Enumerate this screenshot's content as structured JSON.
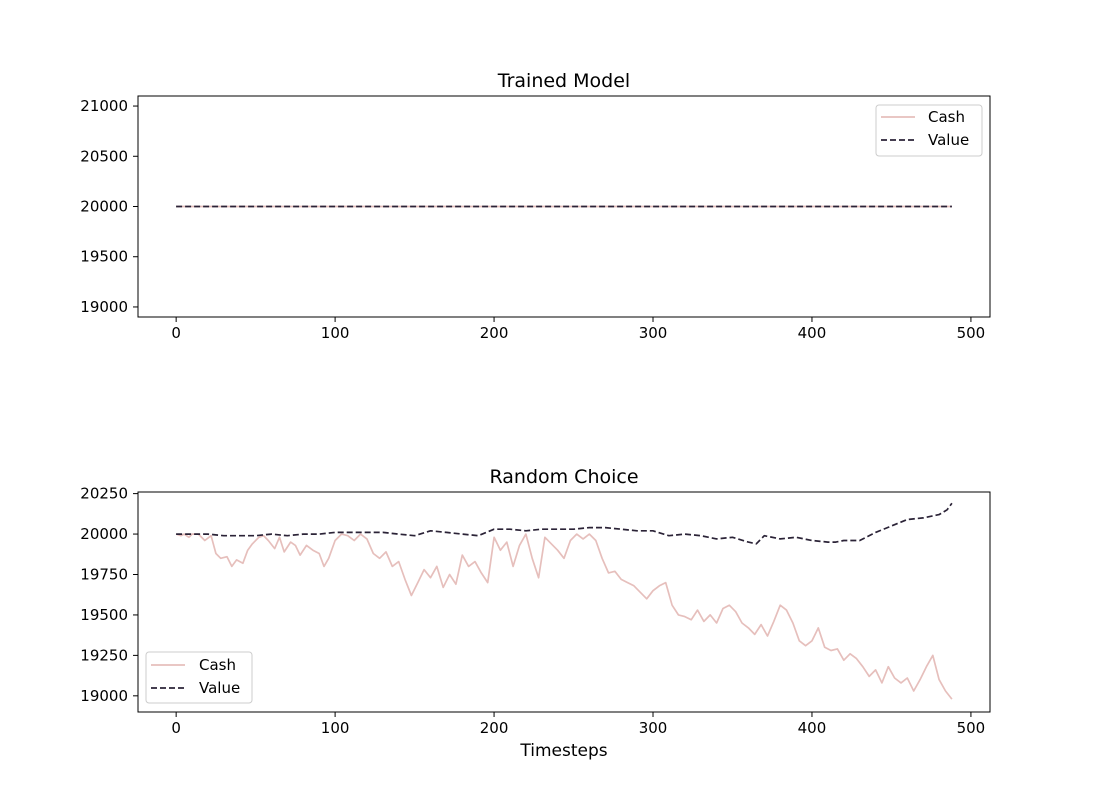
{
  "figure": {
    "background": "#ffffff",
    "series_colors": {
      "cash": "#e6bfbc",
      "value": "#2b2337"
    }
  },
  "chart_data": [
    {
      "type": "line",
      "title": "Trained Model",
      "xlabel": "",
      "ylabel": "",
      "xlim": [
        -24,
        512
      ],
      "ylim": [
        18900,
        21100
      ],
      "xticks": [
        0,
        100,
        200,
        300,
        400,
        500
      ],
      "yticks": [
        19000,
        19500,
        20000,
        20500,
        21000
      ],
      "grid": false,
      "legend_position": "top-right",
      "series": [
        {
          "name": "Cash",
          "style": "solid",
          "color": "#e6bfbc",
          "x": [
            0,
            488
          ],
          "y": [
            20000,
            20000
          ]
        },
        {
          "name": "Value",
          "style": "dashed",
          "color": "#2b2337",
          "x": [
            0,
            488
          ],
          "y": [
            20000,
            20000
          ]
        }
      ]
    },
    {
      "type": "line",
      "title": "Random Choice",
      "xlabel": "Timesteps",
      "ylabel": "",
      "xlim": [
        -24,
        512
      ],
      "ylim": [
        18900,
        20260
      ],
      "xticks": [
        0,
        100,
        200,
        300,
        400,
        500
      ],
      "yticks": [
        19000,
        19250,
        19500,
        19750,
        20000,
        20250
      ],
      "grid": false,
      "legend_position": "bottom-left",
      "series": [
        {
          "name": "Cash",
          "style": "solid",
          "color": "#e6bfbc",
          "x": [
            0,
            3,
            5,
            8,
            10,
            14,
            18,
            22,
            25,
            28,
            32,
            35,
            38,
            42,
            45,
            48,
            52,
            55,
            58,
            62,
            65,
            68,
            72,
            75,
            78,
            82,
            86,
            90,
            93,
            96,
            100,
            104,
            108,
            112,
            116,
            120,
            124,
            128,
            132,
            136,
            140,
            144,
            148,
            152,
            156,
            160,
            164,
            168,
            172,
            176,
            180,
            184,
            188,
            192,
            196,
            200,
            204,
            208,
            212,
            216,
            220,
            224,
            228,
            232,
            236,
            240,
            244,
            248,
            252,
            256,
            260,
            264,
            268,
            272,
            276,
            280,
            284,
            288,
            292,
            296,
            300,
            304,
            308,
            312,
            316,
            320,
            324,
            328,
            332,
            336,
            340,
            344,
            348,
            352,
            356,
            360,
            364,
            368,
            372,
            376,
            380,
            384,
            388,
            392,
            396,
            400,
            404,
            408,
            412,
            416,
            420,
            424,
            428,
            432,
            436,
            440,
            444,
            448,
            452,
            456,
            460,
            464,
            468,
            472,
            476,
            480,
            484,
            488
          ],
          "y": [
            20000,
            19990,
            20000,
            19980,
            20000,
            20000,
            19960,
            19990,
            19880,
            19850,
            19860,
            19800,
            19840,
            19820,
            19900,
            19940,
            19980,
            19990,
            19960,
            19910,
            19980,
            19890,
            19950,
            19930,
            19870,
            19930,
            19900,
            19880,
            19800,
            19850,
            19960,
            20000,
            19990,
            19960,
            20000,
            19970,
            19880,
            19850,
            19890,
            19800,
            19830,
            19720,
            19620,
            19700,
            19780,
            19730,
            19800,
            19670,
            19750,
            19690,
            19870,
            19800,
            19830,
            19760,
            19700,
            19980,
            19900,
            19950,
            19800,
            19930,
            20000,
            19850,
            19730,
            19980,
            19940,
            19900,
            19850,
            19960,
            20000,
            19970,
            20000,
            19960,
            19850,
            19760,
            19770,
            19720,
            19700,
            19680,
            19640,
            19600,
            19650,
            19680,
            19700,
            19560,
            19500,
            19490,
            19470,
            19530,
            19460,
            19500,
            19450,
            19540,
            19560,
            19520,
            19450,
            19420,
            19380,
            19440,
            19370,
            19460,
            19560,
            19530,
            19450,
            19340,
            19310,
            19340,
            19420,
            19300,
            19280,
            19290,
            19220,
            19260,
            19230,
            19180,
            19120,
            19160,
            19080,
            19180,
            19110,
            19080,
            19110,
            19030,
            19100,
            19180,
            19250,
            19100,
            19030,
            18980
          ]
        },
        {
          "name": "Value",
          "style": "dashed",
          "color": "#2b2337",
          "x": [
            0,
            10,
            20,
            30,
            40,
            50,
            60,
            70,
            80,
            90,
            100,
            110,
            120,
            130,
            140,
            150,
            160,
            170,
            180,
            190,
            200,
            210,
            220,
            230,
            240,
            250,
            260,
            270,
            280,
            290,
            300,
            310,
            320,
            330,
            340,
            350,
            360,
            365,
            370,
            380,
            390,
            400,
            410,
            415,
            420,
            430,
            440,
            450,
            460,
            470,
            480,
            485,
            488
          ],
          "y": [
            20000,
            20000,
            20000,
            19990,
            19990,
            19990,
            20000,
            19990,
            20000,
            20000,
            20010,
            20010,
            20010,
            20010,
            20000,
            19990,
            20020,
            20010,
            20000,
            19990,
            20030,
            20030,
            20020,
            20030,
            20030,
            20030,
            20040,
            20040,
            20030,
            20020,
            20020,
            19990,
            20000,
            19990,
            19970,
            19980,
            19950,
            19940,
            19990,
            19970,
            19980,
            19960,
            19950,
            19950,
            19960,
            19960,
            20010,
            20050,
            20090,
            20100,
            20120,
            20150,
            20190
          ]
        }
      ]
    }
  ]
}
